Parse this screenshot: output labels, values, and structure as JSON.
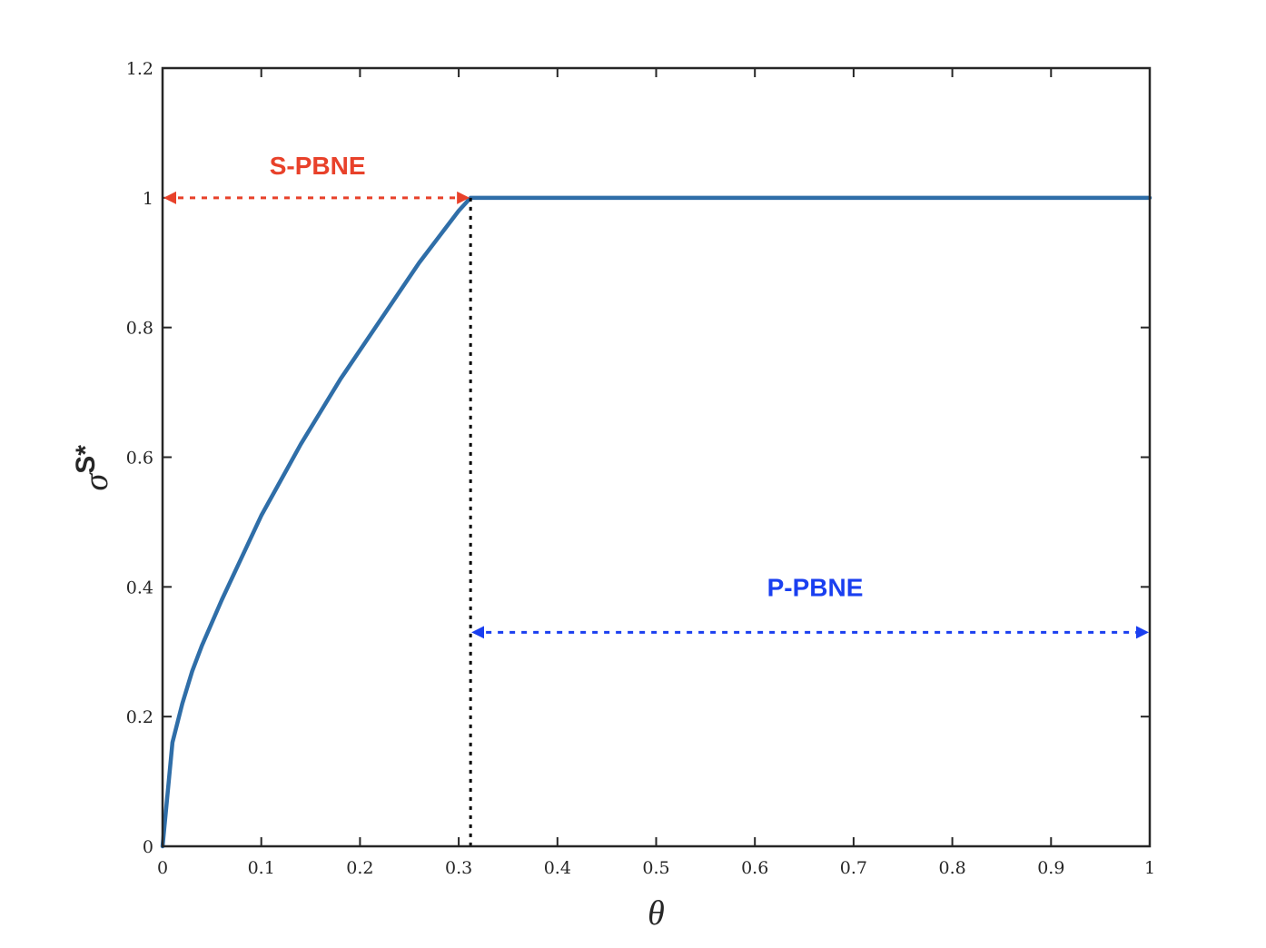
{
  "chart_data": {
    "type": "line",
    "xlabel": "θ",
    "ylabel": {
      "base": "σ",
      "superscript": "S*"
    },
    "xlim": [
      0,
      1
    ],
    "ylim": [
      0,
      1.2
    ],
    "xticks": [
      "0",
      "0.1",
      "0.2",
      "0.3",
      "0.4",
      "0.5",
      "0.6",
      "0.7",
      "0.8",
      "0.9",
      "1"
    ],
    "yticks": [
      "0",
      "0.2",
      "0.4",
      "0.6",
      "0.8",
      "1",
      "1.2"
    ],
    "grid": false,
    "series": [
      {
        "color": "#2f6ea8",
        "points": [
          [
            0,
            0
          ],
          [
            0.01,
            0.16
          ],
          [
            0.02,
            0.22
          ],
          [
            0.03,
            0.27
          ],
          [
            0.04,
            0.31
          ],
          [
            0.05,
            0.345
          ],
          [
            0.06,
            0.38
          ],
          [
            0.08,
            0.445
          ],
          [
            0.1,
            0.51
          ],
          [
            0.12,
            0.565
          ],
          [
            0.14,
            0.62
          ],
          [
            0.16,
            0.67
          ],
          [
            0.18,
            0.72
          ],
          [
            0.2,
            0.765
          ],
          [
            0.22,
            0.81
          ],
          [
            0.24,
            0.855
          ],
          [
            0.26,
            0.9
          ],
          [
            0.28,
            0.94
          ],
          [
            0.3,
            0.98
          ],
          [
            0.312,
            1.0
          ],
          [
            0.32,
            1.0
          ],
          [
            0.4,
            1.0
          ],
          [
            0.6,
            1.0
          ],
          [
            0.8,
            1.0
          ],
          [
            1.0,
            1.0
          ]
        ]
      }
    ],
    "threshold_x": 0.312,
    "annotations": [
      {
        "name": "s-pbne",
        "text": "S-PBNE",
        "color": "#e8412a",
        "label_x": 0.157,
        "label_y": 1.05,
        "arrow": {
          "x_start": 0,
          "x_end": 0.312,
          "y": 1.0
        }
      },
      {
        "name": "p-pbne",
        "text": "P-PBNE",
        "color": "#1a3ff0",
        "label_x": 0.661,
        "label_y": 0.4,
        "arrow": {
          "x_start": 0.312,
          "x_end": 1.0,
          "y": 0.33
        }
      }
    ]
  }
}
